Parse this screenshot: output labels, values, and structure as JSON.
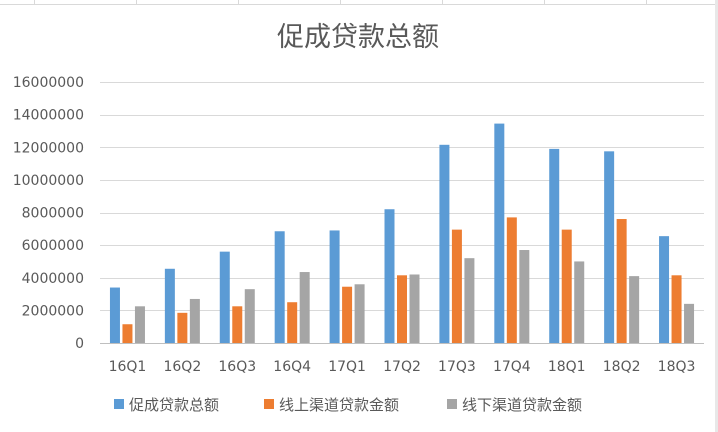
{
  "chart_data": {
    "type": "bar",
    "title": "促成贷款总额",
    "xlabel": "",
    "ylabel": "",
    "ylim": [
      0,
      16000000
    ],
    "yticks": [
      0,
      2000000,
      4000000,
      6000000,
      8000000,
      10000000,
      12000000,
      14000000,
      16000000
    ],
    "ytick_labels": [
      "0",
      "2000000",
      "4000000",
      "6000000",
      "8000000",
      "10000000",
      "12000000",
      "14000000",
      "16000000"
    ],
    "grid": true,
    "legend": "bottom",
    "categories": [
      "16Q1",
      "16Q2",
      "16Q3",
      "16Q4",
      "17Q1",
      "17Q2",
      "17Q3",
      "17Q4",
      "18Q1",
      "18Q2",
      "18Q3"
    ],
    "series": [
      {
        "name": "促成贷款总额",
        "color": "#5b9bd5",
        "values": [
          3400000,
          4550000,
          5600000,
          6850000,
          6900000,
          8200000,
          12150000,
          13450000,
          11900000,
          11750000,
          6550000
        ]
      },
      {
        "name": "线上渠道贷款金额",
        "color": "#ed7d31",
        "values": [
          1150000,
          1850000,
          2250000,
          2500000,
          3450000,
          4150000,
          6950000,
          7700000,
          6950000,
          7600000,
          4150000
        ]
      },
      {
        "name": "线下渠道贷款金额",
        "color": "#a5a5a5",
        "values": [
          2250000,
          2700000,
          3300000,
          4350000,
          3600000,
          4200000,
          5200000,
          5700000,
          5000000,
          4100000,
          2400000
        ]
      }
    ],
    "gridline_color": "#d9d9d9",
    "axis_color": "#bfbfbf"
  }
}
